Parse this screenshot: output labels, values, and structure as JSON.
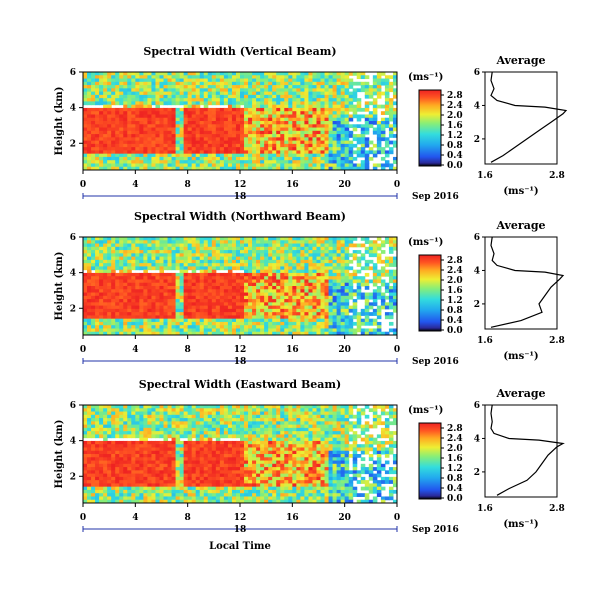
{
  "panels": [
    {
      "title": "Spectral Width (Vertical Beam)",
      "ylabel": "Height (km)",
      "yticks": [
        2,
        4,
        6
      ],
      "xticks": [
        "0",
        "4",
        "8",
        "12",
        "16",
        "20",
        "0"
      ],
      "date_day": "18",
      "date_label": "Sep 2016",
      "cbar_unit": "(ms⁻¹)",
      "cbar_ticks": [
        "2.8",
        "2.4",
        "2.0",
        "1.6",
        "1.2",
        "0.8",
        "0.4",
        "0.0"
      ],
      "avg_title": "Average",
      "avg_xticks": [
        "1.6",
        "2.8"
      ],
      "avg_yticks": [
        2,
        4,
        6
      ],
      "avg_xlabel": "(ms⁻¹)"
    },
    {
      "title": "Spectral Width (Northward Beam)",
      "ylabel": "Height (km)",
      "yticks": [
        2,
        4,
        6
      ],
      "xticks": [
        "0",
        "4",
        "8",
        "12",
        "16",
        "20",
        "0"
      ],
      "date_day": "18",
      "date_label": "Sep 2016",
      "cbar_unit": "(ms⁻¹)",
      "cbar_ticks": [
        "2.8",
        "2.4",
        "2.0",
        "1.6",
        "1.2",
        "0.8",
        "0.4",
        "0.0"
      ],
      "avg_title": "Average",
      "avg_xticks": [
        "1.6",
        "2.8"
      ],
      "avg_yticks": [
        2,
        4,
        6
      ],
      "avg_xlabel": "(ms⁻¹)"
    },
    {
      "title": "Spectral Width (Eastward Beam)",
      "ylabel": "Height (km)",
      "yticks": [
        2,
        4,
        6
      ],
      "xticks": [
        "0",
        "4",
        "8",
        "12",
        "16",
        "20",
        "0"
      ],
      "date_day": "18",
      "date_label": "Sep 2016",
      "cbar_unit": "(ms⁻¹)",
      "cbar_ticks": [
        "2.8",
        "2.4",
        "2.0",
        "1.6",
        "1.2",
        "0.8",
        "0.4",
        "0.0"
      ],
      "avg_title": "Average",
      "avg_xticks": [
        "1.6",
        "2.8"
      ],
      "avg_yticks": [
        2,
        4,
        6
      ],
      "avg_xlabel": "(ms⁻¹)"
    }
  ],
  "xlabel": "Local Time",
  "chart_data": [
    {
      "type": "heatmap",
      "title": "Spectral Width (Vertical Beam)",
      "xlabel": "",
      "ylabel": "Height (km)",
      "xlim": [
        0,
        24
      ],
      "ylim": [
        0.5,
        6
      ],
      "colorbar_range": [
        0.0,
        2.8
      ],
      "colorbar_unit": "ms⁻¹",
      "average_profile": {
        "title": "Average",
        "height_km": [
          0.6,
          1.0,
          1.5,
          2.0,
          2.5,
          3.0,
          3.5,
          3.7,
          3.9,
          4.0,
          4.3,
          4.6,
          5.0,
          5.5,
          6.0
        ],
        "value": [
          1.7,
          1.9,
          2.1,
          2.3,
          2.5,
          2.7,
          2.9,
          2.95,
          2.6,
          2.1,
          1.8,
          1.7,
          1.75,
          1.7,
          1.72
        ]
      }
    },
    {
      "type": "heatmap",
      "title": "Spectral Width (Northward Beam)",
      "xlabel": "",
      "ylabel": "Height (km)",
      "xlim": [
        0,
        24
      ],
      "ylim": [
        0.5,
        6
      ],
      "colorbar_range": [
        0.0,
        2.8
      ],
      "colorbar_unit": "ms⁻¹",
      "average_profile": {
        "title": "Average",
        "height_km": [
          0.6,
          1.0,
          1.5,
          2.0,
          2.5,
          3.0,
          3.5,
          3.7,
          3.9,
          4.0,
          4.3,
          4.6,
          5.0,
          5.5,
          6.0
        ],
        "value": [
          1.7,
          2.2,
          2.55,
          2.5,
          2.6,
          2.7,
          2.85,
          2.9,
          2.6,
          2.1,
          1.8,
          1.72,
          1.75,
          1.7,
          1.72
        ]
      }
    },
    {
      "type": "heatmap",
      "title": "Spectral Width (Eastward Beam)",
      "xlabel": "Local Time",
      "ylabel": "Height (km)",
      "xlim": [
        0,
        24
      ],
      "ylim": [
        0.5,
        6
      ],
      "colorbar_range": [
        0.0,
        2.8
      ],
      "colorbar_unit": "ms⁻¹",
      "average_profile": {
        "title": "Average",
        "height_km": [
          0.6,
          1.0,
          1.5,
          2.0,
          2.5,
          3.0,
          3.5,
          3.7,
          3.9,
          4.0,
          4.3,
          4.6,
          5.0,
          5.5,
          6.0
        ],
        "value": [
          1.8,
          2.0,
          2.3,
          2.45,
          2.55,
          2.65,
          2.8,
          2.9,
          2.5,
          2.0,
          1.75,
          1.7,
          1.72,
          1.7,
          1.72
        ]
      }
    }
  ]
}
